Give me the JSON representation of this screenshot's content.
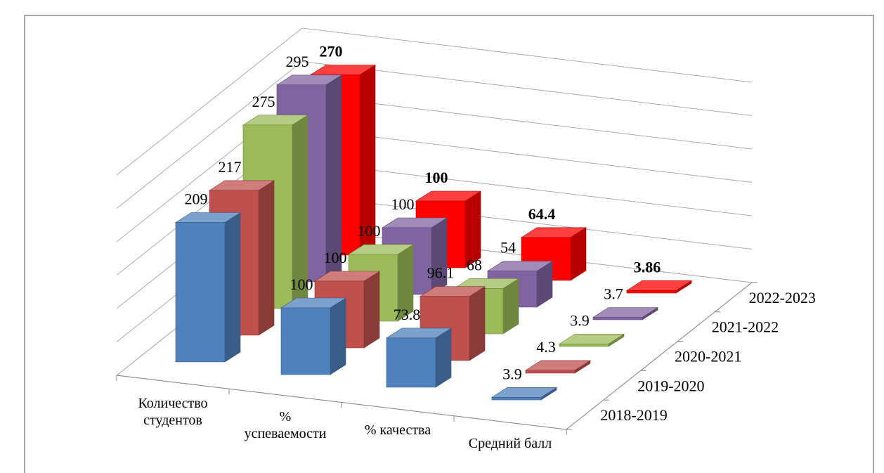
{
  "chart_data": {
    "type": "bar3d",
    "categories": [
      "Количество студентов",
      "% успеваемости",
      "% качества",
      "Средний балл"
    ],
    "series": [
      {
        "name": "2018-2019",
        "color": "#4f81bd",
        "values": [
          209,
          100,
          73.8,
          3.9
        ]
      },
      {
        "name": "2019-2020",
        "color": "#c0504d",
        "values": [
          217,
          100,
          96.1,
          4.3
        ]
      },
      {
        "name": "2020-2021",
        "color": "#9bbb59",
        "values": [
          275,
          100,
          68,
          3.9
        ]
      },
      {
        "name": "2021-2022",
        "color": "#8064a2",
        "values": [
          295,
          100,
          54,
          3.7
        ]
      },
      {
        "name": "2022-2023",
        "color": "#ff0000",
        "values": [
          270,
          100,
          64.4,
          3.86
        ],
        "bold": true
      }
    ],
    "ylim": [
      0,
      300
    ],
    "yticks": [
      0,
      50,
      100,
      150,
      200,
      250,
      300
    ],
    "grid": true
  }
}
